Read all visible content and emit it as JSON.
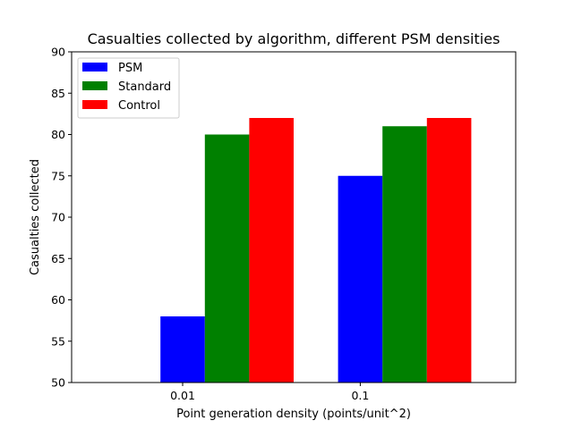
{
  "chart_data": {
    "type": "bar",
    "title": "Casualties collected by algorithm, different PSM densities",
    "xlabel": "Point generation density (points/unit^2)",
    "ylabel": "Casualties collected",
    "categories": [
      "0.01",
      "0.1"
    ],
    "series": [
      {
        "name": "PSM",
        "values": [
          58,
          75
        ],
        "color": "#0000ff"
      },
      {
        "name": "Standard",
        "values": [
          80,
          81
        ],
        "color": "#008000"
      },
      {
        "name": "Control",
        "values": [
          82,
          82
        ],
        "color": "#ff0000"
      }
    ],
    "ylim": [
      50,
      90
    ],
    "yticks": [
      "50",
      "55",
      "60",
      "65",
      "70",
      "75",
      "80",
      "85",
      "90"
    ],
    "grid": false,
    "legend_position": "upper-left"
  }
}
